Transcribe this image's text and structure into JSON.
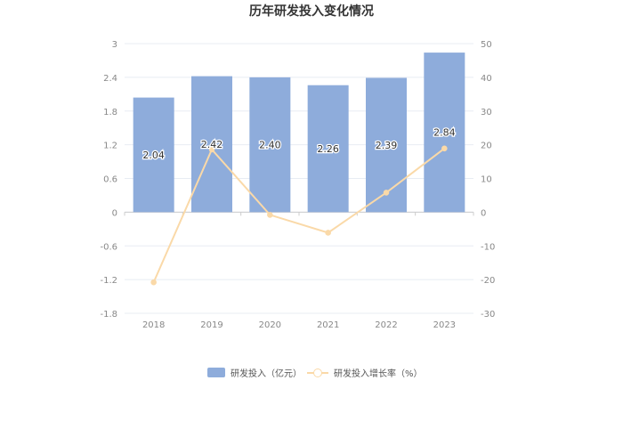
{
  "title": "历年研发投入变化情况",
  "legend": {
    "bar_label": "研发投入（亿元）",
    "line_label": "研发投入增长率（%）"
  },
  "colors": {
    "bar": "#8eacdb",
    "line": "#fad9a8",
    "grid": "#e8ecf3",
    "axis": "#cccccc"
  },
  "chart_data": {
    "type": "bar",
    "title": "历年研发投入变化情况",
    "categories": [
      "2018",
      "2019",
      "2020",
      "2021",
      "2022",
      "2023"
    ],
    "series": [
      {
        "name": "研发投入（亿元）",
        "type": "bar",
        "axis": "left",
        "values": [
          2.04,
          2.42,
          2.4,
          2.26,
          2.39,
          2.84
        ],
        "labels": [
          "2.04",
          "2.42",
          "2.40",
          "2.26",
          "2.39",
          "2.84"
        ]
      },
      {
        "name": "研发投入增长率（%）",
        "type": "line",
        "axis": "right",
        "values": [
          -20.8,
          18.6,
          -0.8,
          -6.1,
          5.8,
          18.9
        ]
      }
    ],
    "y_left": {
      "min": -1.8,
      "max": 3,
      "ticks": [
        "3",
        "2.4",
        "1.8",
        "1.2",
        "0.6",
        "0",
        "-0.6",
        "-1.2",
        "-1.8"
      ]
    },
    "y_right": {
      "min": -30,
      "max": 50,
      "ticks": [
        "50",
        "40",
        "30",
        "20",
        "10",
        "0",
        "-10",
        "-20",
        "-30"
      ]
    },
    "grid": true,
    "legend_position": "bottom"
  }
}
